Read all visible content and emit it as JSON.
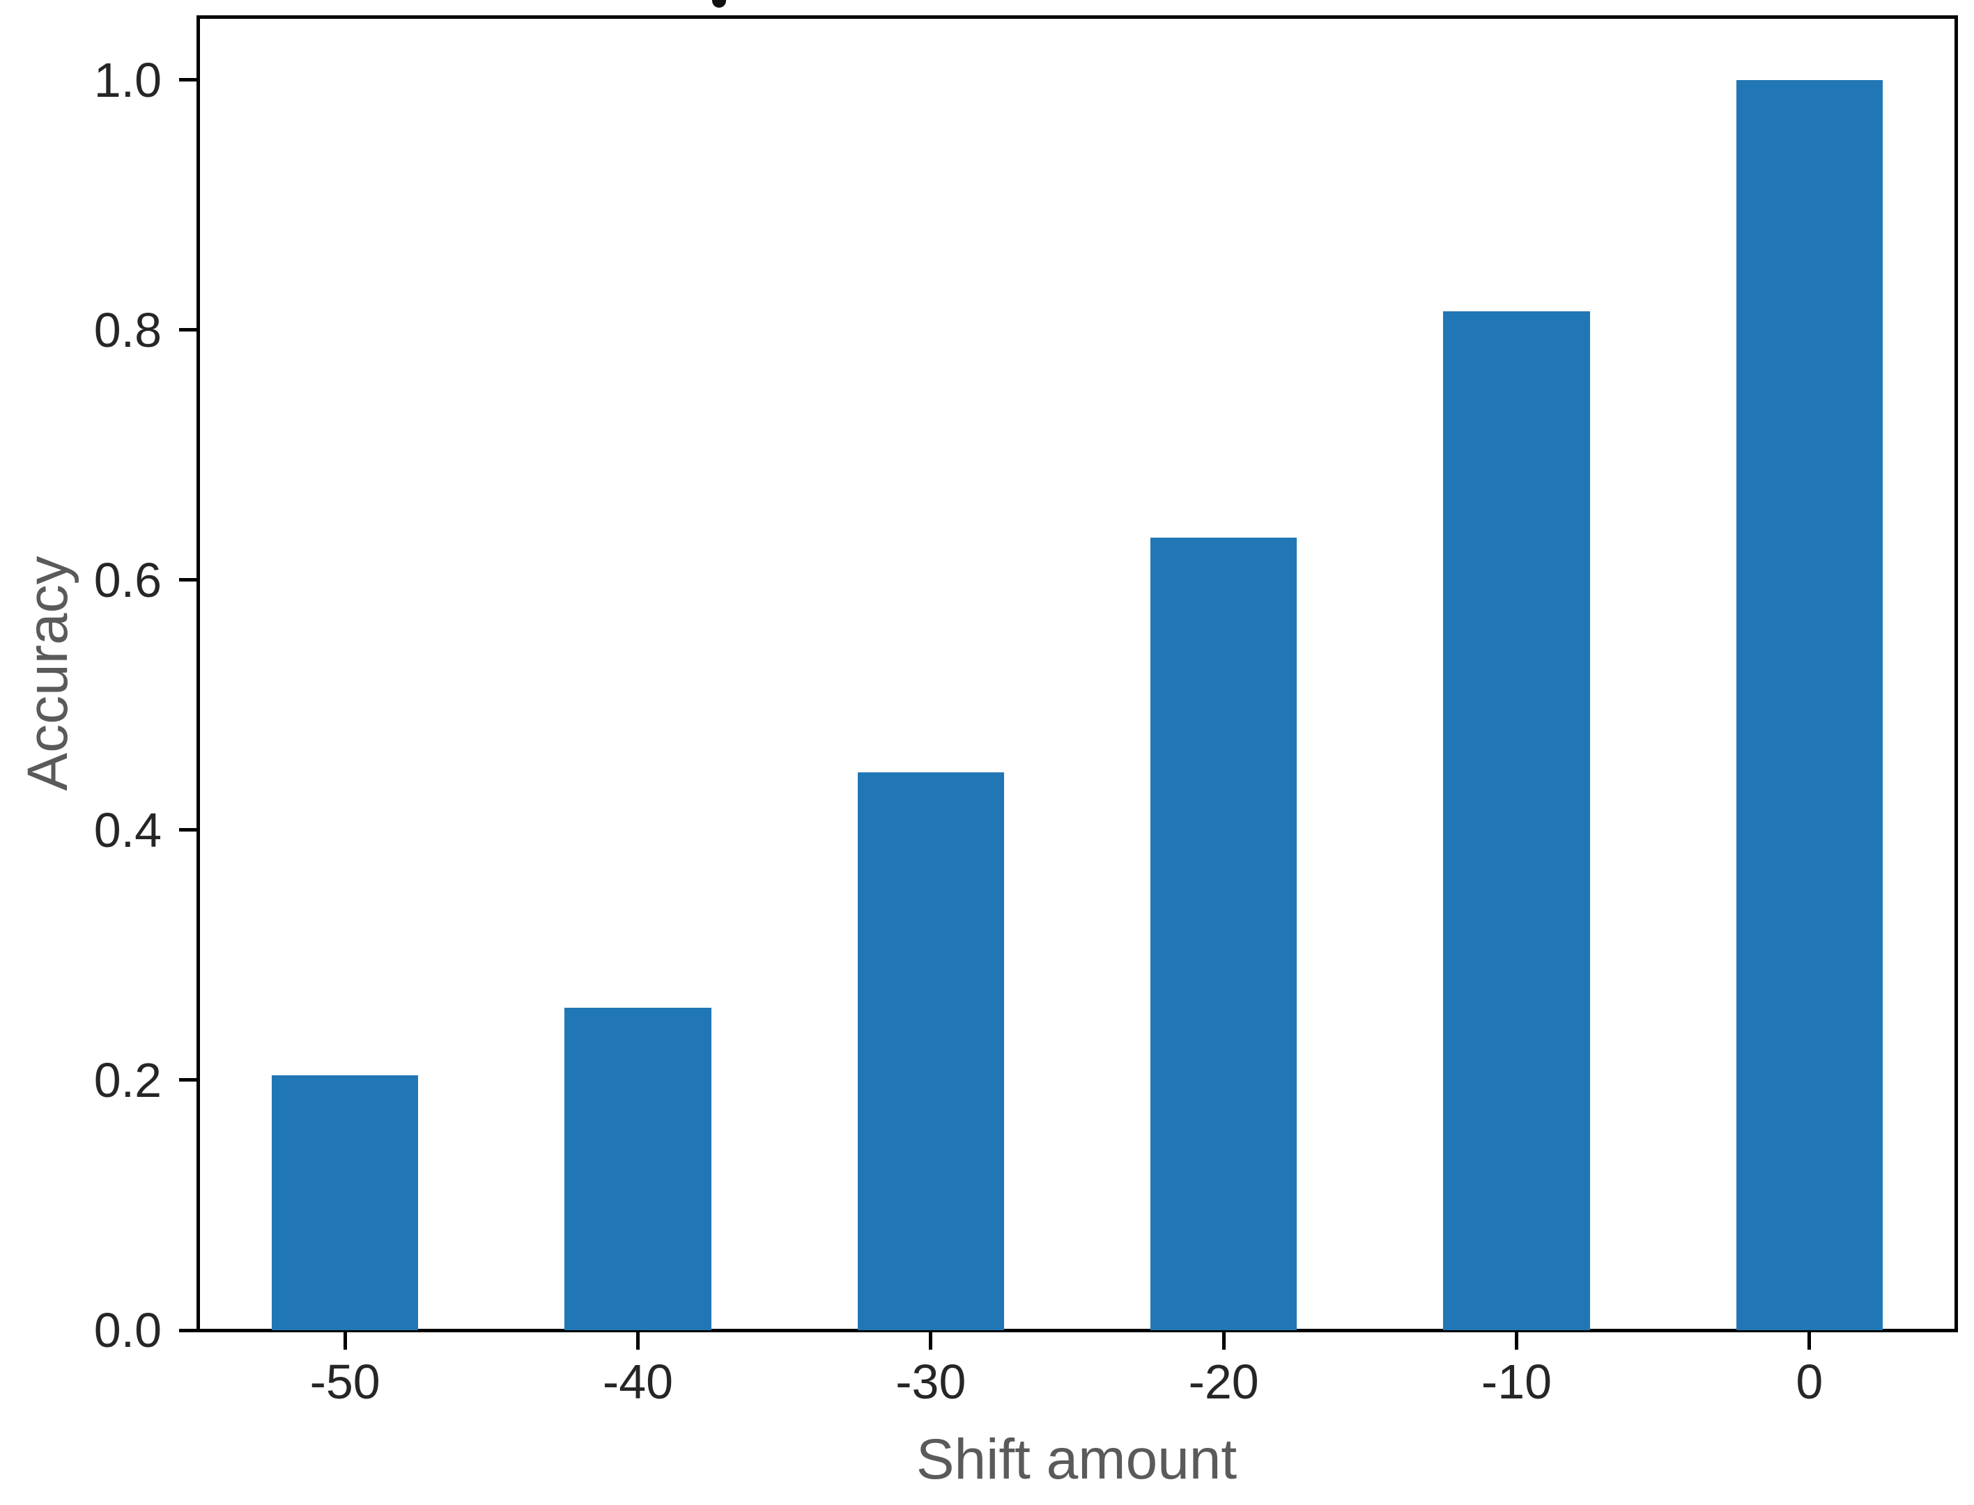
{
  "figure": {
    "background": "#ffffff",
    "cropped_title_remnant": true
  },
  "chart_data": {
    "type": "bar",
    "categories": [
      "-50",
      "-40",
      "-30",
      "-20",
      "-10",
      "0"
    ],
    "values": [
      0.204,
      0.258,
      0.446,
      0.634,
      0.815,
      1.0
    ],
    "title": "",
    "xlabel": "Shift amount",
    "ylabel": "Accuracy",
    "ylim": [
      0,
      1.05
    ],
    "yticks": [
      0.0,
      0.2,
      0.4,
      0.6,
      0.8,
      1.0
    ],
    "ytick_labels": [
      "0.0",
      "0.2",
      "0.4",
      "0.6",
      "0.8",
      "1.0"
    ],
    "grid": false,
    "legend": null,
    "bar_width_fraction": 0.5,
    "colors": {
      "bar": "#2177b5",
      "spine": "#000000",
      "tick_label": "#262626",
      "axis_label": "#5a5a5a"
    }
  }
}
